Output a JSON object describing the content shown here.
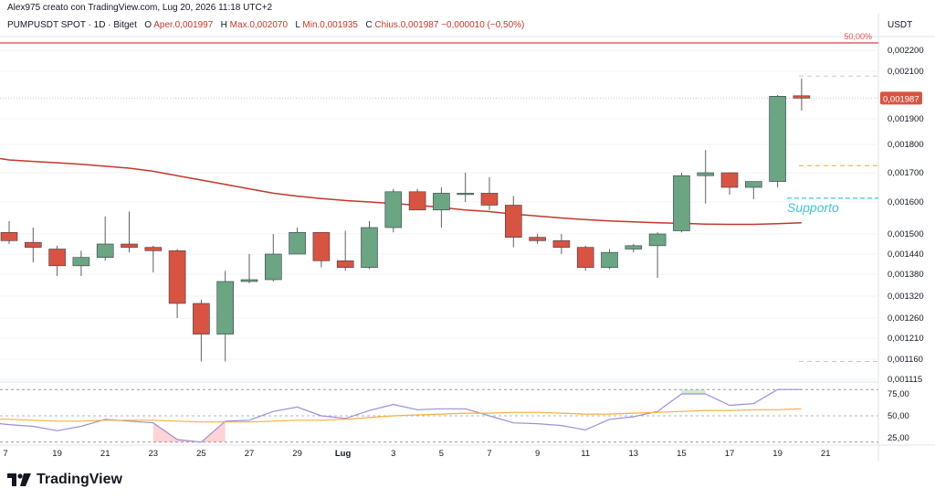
{
  "header": {
    "attribution": "Alex975 creato con TradingView.com, Lug 20, 2026 11:18 UTC+2",
    "symbol_line": "PUMPUSDT SPOT · 1D · Bitget",
    "ohlc": {
      "o_label": "O",
      "o_value": "Aper.0,001997",
      "h_label": "H",
      "h_value": "Max.0,002070",
      "l_label": "L",
      "l_value": "Min.0,001935",
      "c_label": "C",
      "c_value": "Chius.0,001987",
      "change": "−0,000010 (−0,50%)"
    },
    "currency": "USDT"
  },
  "branding": {
    "logo_text": "TradingView"
  },
  "colors": {
    "up": "#6ba583",
    "down": "#d75442",
    "ma": "#c0392b",
    "rsi": "#9a8fd6",
    "rsi_ma": "#f4b041",
    "support": "#44c3d6",
    "resistance": "#e05252",
    "current_orange": "#f5a623"
  },
  "chart_data": [
    {
      "type": "candlestick",
      "title": "PUMPUSDT SPOT · 1D · Bitget",
      "x_ticks": [
        "7",
        "19",
        "21",
        "23",
        "25",
        "27",
        "29",
        "Lug",
        "3",
        "5",
        "7",
        "9",
        "11",
        "13",
        "15",
        "17",
        "19",
        "21"
      ],
      "y_ticks": [
        "0,002200",
        "0,002100",
        "0,001900",
        "0,001800",
        "0,001700",
        "0,001600",
        "0,001500",
        "0,001440",
        "0,001380",
        "0,001320",
        "0,001260",
        "0,001210",
        "0,001160",
        "0,001115"
      ],
      "ylim": [
        0.001115,
        0.00225
      ],
      "current_price_label": "0,001987",
      "fib_label": "50,00%",
      "resistance_level": 0.002235,
      "support_label": "Supporto",
      "support_level": 0.001613,
      "orange_level": 0.001725,
      "upper_dashed_level": 0.00208,
      "lower_dashed_level": 0.001155,
      "candles": [
        {
          "o": 0.001505,
          "h": 0.00154,
          "l": 0.00147,
          "c": 0.00148
        },
        {
          "o": 0.001475,
          "h": 0.00152,
          "l": 0.001415,
          "c": 0.00146
        },
        {
          "o": 0.001455,
          "h": 0.001465,
          "l": 0.001375,
          "c": 0.001405
        },
        {
          "o": 0.001405,
          "h": 0.00145,
          "l": 0.001375,
          "c": 0.00143
        },
        {
          "o": 0.00143,
          "h": 0.001555,
          "l": 0.00142,
          "c": 0.00147
        },
        {
          "o": 0.00147,
          "h": 0.00157,
          "l": 0.001445,
          "c": 0.00146
        },
        {
          "o": 0.00146,
          "h": 0.001465,
          "l": 0.001385,
          "c": 0.00145
        },
        {
          "o": 0.00145,
          "h": 0.001455,
          "l": 0.00126,
          "c": 0.0013
        },
        {
          "o": 0.0013,
          "h": 0.00131,
          "l": 0.001155,
          "c": 0.00122
        },
        {
          "o": 0.00122,
          "h": 0.00139,
          "l": 0.001155,
          "c": 0.00136
        },
        {
          "o": 0.00136,
          "h": 0.00144,
          "l": 0.001355,
          "c": 0.001365
        },
        {
          "o": 0.001365,
          "h": 0.0015,
          "l": 0.00136,
          "c": 0.00144
        },
        {
          "o": 0.00144,
          "h": 0.00152,
          "l": 0.00144,
          "c": 0.001505
        },
        {
          "o": 0.001505,
          "h": 0.001505,
          "l": 0.0014,
          "c": 0.00142
        },
        {
          "o": 0.00142,
          "h": 0.00151,
          "l": 0.00139,
          "c": 0.0014
        },
        {
          "o": 0.0014,
          "h": 0.00154,
          "l": 0.001395,
          "c": 0.00152
        },
        {
          "o": 0.00152,
          "h": 0.001645,
          "l": 0.001505,
          "c": 0.001635
        },
        {
          "o": 0.001635,
          "h": 0.001645,
          "l": 0.00158,
          "c": 0.001575
        },
        {
          "o": 0.001575,
          "h": 0.00165,
          "l": 0.00152,
          "c": 0.00163
        },
        {
          "o": 0.00163,
          "h": 0.0017,
          "l": 0.0016,
          "c": 0.00163
        },
        {
          "o": 0.00163,
          "h": 0.001685,
          "l": 0.001575,
          "c": 0.00159
        },
        {
          "o": 0.00159,
          "h": 0.00162,
          "l": 0.00146,
          "c": 0.00149
        },
        {
          "o": 0.00149,
          "h": 0.0015,
          "l": 0.00147,
          "c": 0.00148
        },
        {
          "o": 0.00148,
          "h": 0.0015,
          "l": 0.00144,
          "c": 0.00146
        },
        {
          "o": 0.00146,
          "h": 0.001465,
          "l": 0.00139,
          "c": 0.0014
        },
        {
          "o": 0.0014,
          "h": 0.001455,
          "l": 0.001395,
          "c": 0.001445
        },
        {
          "o": 0.001455,
          "h": 0.00147,
          "l": 0.001445,
          "c": 0.001465
        },
        {
          "o": 0.001465,
          "h": 0.001505,
          "l": 0.00137,
          "c": 0.0015
        },
        {
          "o": 0.00151,
          "h": 0.0017,
          "l": 0.001505,
          "c": 0.00169
        },
        {
          "o": 0.00169,
          "h": 0.00178,
          "l": 0.001595,
          "c": 0.0017
        },
        {
          "o": 0.0017,
          "h": 0.0017,
          "l": 0.001625,
          "c": 0.00165
        },
        {
          "o": 0.00165,
          "h": 0.00167,
          "l": 0.00161,
          "c": 0.00167
        },
        {
          "o": 0.00167,
          "h": 0.002,
          "l": 0.00165,
          "c": 0.001995
        },
        {
          "o": 0.001997,
          "h": 0.00207,
          "l": 0.001935,
          "c": 0.001987
        }
      ],
      "ma_line": [
        0.001745,
        0.00174,
        0.001735,
        0.00173,
        0.001723,
        0.001716,
        0.001705,
        0.00169,
        0.001675,
        0.00166,
        0.001645,
        0.00163,
        0.00162,
        0.001612,
        0.001605,
        0.0016,
        0.001595,
        0.00159,
        0.001583,
        0.001575,
        0.00157,
        0.001562,
        0.001556,
        0.00155,
        0.001545,
        0.001541,
        0.001538,
        0.001535,
        0.001533,
        0.001531,
        0.00153,
        0.00153,
        0.001532,
        0.001535
      ]
    },
    {
      "type": "line",
      "title": "RSI",
      "y_ticks": [
        "75,00",
        "50,00",
        "25,00"
      ],
      "ylim": [
        20,
        85
      ],
      "levels": [
        80,
        50,
        20
      ],
      "series": [
        {
          "values": [
            40,
            38,
            33,
            38,
            46,
            44,
            42,
            23,
            20,
            44,
            45,
            55,
            60,
            50,
            47,
            56,
            63,
            57,
            58,
            58,
            50,
            42,
            41,
            39,
            34,
            46,
            49,
            55,
            75,
            75,
            62,
            64,
            80,
            80
          ]
        },
        {
          "values": [
            46,
            45,
            44,
            44,
            45,
            45,
            45,
            44,
            43,
            43,
            43,
            44,
            45,
            45,
            46,
            48,
            50,
            51,
            52,
            53,
            53,
            54,
            54,
            53,
            52,
            52,
            53,
            54,
            55,
            56,
            56,
            57,
            57,
            58
          ]
        }
      ]
    }
  ]
}
